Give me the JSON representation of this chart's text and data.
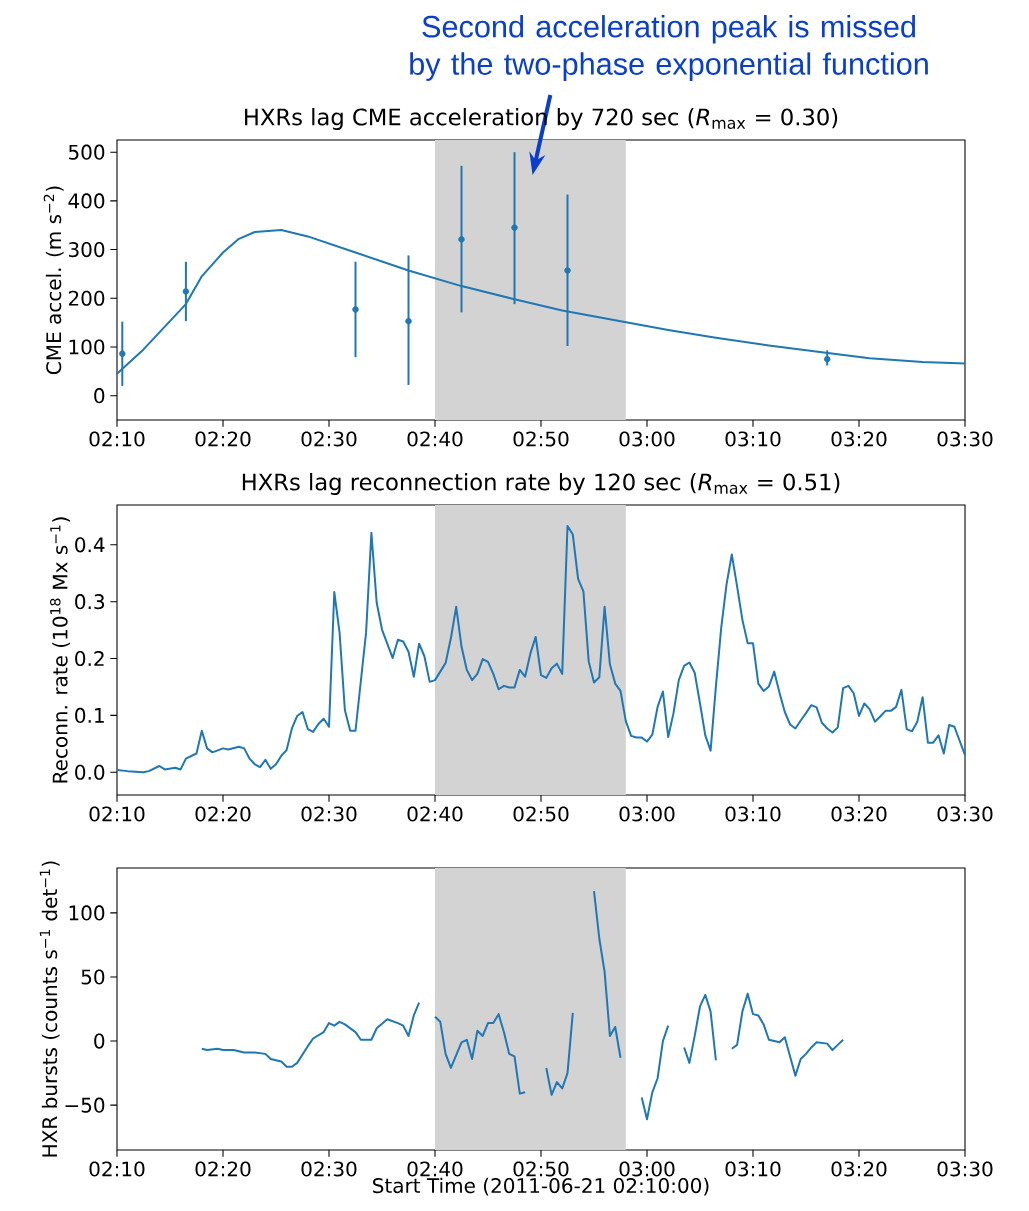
{
  "chart_data": [
    {
      "type": "scatter",
      "title": "HXRs lag CME acceleration by 720 sec (*R*$_{max}$ = 0.30)",
      "ylabel": "CME accel. (m s$^{−2}$)",
      "xlim": [
        "2011-06-21T02:10",
        "2011-06-21T03:30"
      ],
      "ylim": [
        -50,
        525
      ],
      "xticks": [
        {
          "value": "2011-06-21T02:10",
          "label": "02:10"
        },
        {
          "value": "2011-06-21T02:20",
          "label": "02:20"
        },
        {
          "value": "2011-06-21T02:30",
          "label": "02:30"
        },
        {
          "value": "2011-06-21T02:40",
          "label": "02:40"
        },
        {
          "value": "2011-06-21T02:50",
          "label": "02:50"
        },
        {
          "value": "2011-06-21T03:00",
          "label": "03:00"
        },
        {
          "value": "2011-06-21T03:10",
          "label": "03:10"
        },
        {
          "value": "2011-06-21T03:20",
          "label": "03:20"
        },
        {
          "value": "2011-06-21T03:30",
          "label": "03:30"
        }
      ],
      "yticks": [
        0,
        100,
        200,
        300,
        400,
        500
      ],
      "bands": [
        {
          "axis": "x",
          "from": "2011-06-21T02:40",
          "to": "2011-06-21T02:58",
          "color": "#d3d3d3"
        }
      ],
      "annotations": [
        "Second acceleration peak is missed by the two-phase exponential function"
      ],
      "series": [
        {
          "color": "#1f77b4",
          "marker": "circle",
          "x": [
            "2011-06-21T02:10:30",
            "2011-06-21T02:16:30",
            "2011-06-21T02:32:30",
            "2011-06-21T02:37:30",
            "2011-06-21T02:42:30",
            "2011-06-21T02:47:30",
            "2011-06-21T02:52:30",
            "2011-06-21T03:17"
          ],
          "values": [
            86,
            214,
            177,
            153,
            321,
            345,
            257,
            75
          ],
          "errors": [
            [
              20,
              152
            ],
            [
              153,
              275
            ],
            [
              79,
              275
            ],
            [
              22,
              288
            ],
            [
              171,
              472
            ],
            [
              188,
              500
            ],
            [
              102,
              413
            ],
            [
              62,
              93
            ]
          ]
        },
        {
          "type": "line",
          "color": "#1f77b4",
          "x": [
            "2011-06-21T02:10",
            "2011-06-21T02:12:30",
            "2011-06-21T02:16:30",
            "2011-06-21T02:18",
            "2011-06-21T02:20",
            "2011-06-21T02:21:30",
            "2011-06-21T02:23",
            "2011-06-21T02:25:30",
            "2011-06-21T02:28",
            "2011-06-21T02:32:30",
            "2011-06-21T02:37:30",
            "2011-06-21T02:42:30",
            "2011-06-21T02:47:30",
            "2011-06-21T02:52",
            "2011-06-21T02:57",
            "2011-06-21T03:02",
            "2011-06-21T03:06:30",
            "2011-06-21T03:11:30",
            "2011-06-21T03:16:30",
            "2011-06-21T03:21",
            "2011-06-21T03:26",
            "2011-06-21T03:30"
          ],
          "values": [
            45,
            95,
            188,
            245,
            294,
            322,
            336,
            340,
            327,
            294,
            257,
            225,
            198,
            175,
            155,
            135,
            119,
            103,
            89,
            77,
            69,
            66
          ]
        }
      ]
    },
    {
      "type": "line",
      "title": "HXRs lag reconnection rate by 120 sec (*R*$_{max}$ = 0.51)",
      "ylabel": "Reconn. rate (10$^{18}$ Mx s$^{−1}$)",
      "xlim": [
        "2011-06-21T02:10",
        "2011-06-21T03:30"
      ],
      "ylim": [
        -0.04,
        0.47
      ],
      "xticks": [
        {
          "value": "2011-06-21T02:10",
          "label": "02:10"
        },
        {
          "value": "2011-06-21T02:20",
          "label": "02:20"
        },
        {
          "value": "2011-06-21T02:30",
          "label": "02:30"
        },
        {
          "value": "2011-06-21T02:40",
          "label": "02:40"
        },
        {
          "value": "2011-06-21T02:50",
          "label": "02:50"
        },
        {
          "value": "2011-06-21T03:00",
          "label": "03:00"
        },
        {
          "value": "2011-06-21T03:10",
          "label": "03:10"
        },
        {
          "value": "2011-06-21T03:20",
          "label": "03:20"
        },
        {
          "value": "2011-06-21T03:30",
          "label": "03:30"
        }
      ],
      "yticks": [
        {
          "value": 0,
          "label": "0.0"
        },
        {
          "value": 0.1,
          "label": "0.1"
        },
        {
          "value": 0.2,
          "label": "0.2"
        },
        {
          "value": 0.3,
          "label": "0.3"
        },
        {
          "value": 0.4,
          "label": "0.4"
        }
      ],
      "bands": [
        {
          "axis": "x",
          "from": "2011-06-21T02:40",
          "to": "2011-06-21T02:58",
          "color": "#d3d3d3"
        }
      ],
      "series": [
        {
          "color": "#1f77b4",
          "x": [
            "2011-06-21T02:10",
            "2011-06-21T02:11",
            "2011-06-21T02:12:30",
            "2011-06-21T02:13",
            "2011-06-21T02:14",
            "2011-06-21T02:14:30",
            "2011-06-21T02:15:30",
            "2011-06-21T02:16",
            "2011-06-21T02:16:30",
            "2011-06-21T02:17:30",
            "2011-06-21T02:18",
            "2011-06-21T02:18:30",
            "2011-06-21T02:19",
            "2011-06-21T02:20",
            "2011-06-21T02:20:30",
            "2011-06-21T02:21:30",
            "2011-06-21T02:22",
            "2011-06-21T02:22:30",
            "2011-06-21T02:23",
            "2011-06-21T02:23:30",
            "2011-06-21T02:24",
            "2011-06-21T02:24:30",
            "2011-06-21T02:25",
            "2011-06-21T02:25:30",
            "2011-06-21T02:26",
            "2011-06-21T02:26:30",
            "2011-06-21T02:27",
            "2011-06-21T02:27:30",
            "2011-06-21T02:28",
            "2011-06-21T02:28:30",
            "2011-06-21T02:29",
            "2011-06-21T02:29:30",
            "2011-06-21T02:30",
            "2011-06-21T02:30:30",
            "2011-06-21T02:31",
            "2011-06-21T02:31:30",
            "2011-06-21T02:32",
            "2011-06-21T02:32:30",
            "2011-06-21T02:33:30",
            "2011-06-21T02:34",
            "2011-06-21T02:34:30",
            "2011-06-21T02:35",
            "2011-06-21T02:36",
            "2011-06-21T02:36:30",
            "2011-06-21T02:37",
            "2011-06-21T02:37:30",
            "2011-06-21T02:38",
            "2011-06-21T02:38:30",
            "2011-06-21T02:39",
            "2011-06-21T02:39:30",
            "2011-06-21T02:40",
            "2011-06-21T02:40:30",
            "2011-06-21T02:41",
            "2011-06-21T02:41:30",
            "2011-06-21T02:42",
            "2011-06-21T02:42:30",
            "2011-06-21T02:43",
            "2011-06-21T02:43:30",
            "2011-06-21T02:44",
            "2011-06-21T02:44:30",
            "2011-06-21T02:45",
            "2011-06-21T02:45:30",
            "2011-06-21T02:46",
            "2011-06-21T02:46:30",
            "2011-06-21T02:47",
            "2011-06-21T02:47:30",
            "2011-06-21T02:48",
            "2011-06-21T02:48:30",
            "2011-06-21T02:49",
            "2011-06-21T02:49:30",
            "2011-06-21T02:50",
            "2011-06-21T02:50:30",
            "2011-06-21T02:51",
            "2011-06-21T02:51:30",
            "2011-06-21T02:52",
            "2011-06-21T02:52:30",
            "2011-06-21T02:53",
            "2011-06-21T02:53:30",
            "2011-06-21T02:54",
            "2011-06-21T02:54:30",
            "2011-06-21T02:55",
            "2011-06-21T02:55:30",
            "2011-06-21T02:56",
            "2011-06-21T02:56:30",
            "2011-06-21T02:57",
            "2011-06-21T02:57:30",
            "2011-06-21T02:58",
            "2011-06-21T02:58:30",
            "2011-06-21T02:59",
            "2011-06-21T02:59:30",
            "2011-06-21T03:00",
            "2011-06-21T03:00:30",
            "2011-06-21T03:01",
            "2011-06-21T03:01:30",
            "2011-06-21T03:02",
            "2011-06-21T03:02:30",
            "2011-06-21T03:03",
            "2011-06-21T03:03:30",
            "2011-06-21T03:04",
            "2011-06-21T03:04:30",
            "2011-06-21T03:05",
            "2011-06-21T03:05:30",
            "2011-06-21T03:06",
            "2011-06-21T03:06:30",
            "2011-06-21T03:07",
            "2011-06-21T03:07:30",
            "2011-06-21T03:08",
            "2011-06-21T03:08:30",
            "2011-06-21T03:09",
            "2011-06-21T03:09:30",
            "2011-06-21T03:10",
            "2011-06-21T03:10:30",
            "2011-06-21T03:11",
            "2011-06-21T03:11:30",
            "2011-06-21T03:12",
            "2011-06-21T03:12:30",
            "2011-06-21T03:13",
            "2011-06-21T03:13:30",
            "2011-06-21T03:14",
            "2011-06-21T03:14:30",
            "2011-06-21T03:15",
            "2011-06-21T03:15:30",
            "2011-06-21T03:16",
            "2011-06-21T03:16:30",
            "2011-06-21T03:17",
            "2011-06-21T03:17:30",
            "2011-06-21T03:18",
            "2011-06-21T03:18:30",
            "2011-06-21T03:19",
            "2011-06-21T03:19:30",
            "2011-06-21T03:20",
            "2011-06-21T03:20:30",
            "2011-06-21T03:21",
            "2011-06-21T03:21:30",
            "2011-06-21T03:22",
            "2011-06-21T03:22:30",
            "2011-06-21T03:23",
            "2011-06-21T03:23:30",
            "2011-06-21T03:24",
            "2011-06-21T03:24:30",
            "2011-06-21T03:25",
            "2011-06-21T03:25:30",
            "2011-06-21T03:26",
            "2011-06-21T03:26:30",
            "2011-06-21T03:27",
            "2011-06-21T03:27:30",
            "2011-06-21T03:28",
            "2011-06-21T03:28:30",
            "2011-06-21T03:29",
            "2011-06-21T03:30"
          ],
          "values": [
            0.004,
            0.002,
            0.0,
            0.002,
            0.011,
            0.005,
            0.008,
            0.005,
            0.024,
            0.033,
            0.073,
            0.042,
            0.035,
            0.042,
            0.04,
            0.045,
            0.042,
            0.024,
            0.014,
            0.009,
            0.022,
            0.006,
            0.014,
            0.029,
            0.039,
            0.077,
            0.099,
            0.106,
            0.076,
            0.071,
            0.085,
            0.094,
            0.08,
            0.317,
            0.245,
            0.109,
            0.073,
            0.073,
            0.246,
            0.421,
            0.298,
            0.251,
            0.201,
            0.233,
            0.23,
            0.212,
            0.168,
            0.226,
            0.204,
            0.159,
            0.162,
            0.177,
            0.192,
            0.236,
            0.291,
            0.221,
            0.18,
            0.162,
            0.173,
            0.199,
            0.194,
            0.173,
            0.146,
            0.152,
            0.149,
            0.149,
            0.18,
            0.168,
            0.209,
            0.238,
            0.171,
            0.166,
            0.183,
            0.191,
            0.173,
            0.433,
            0.418,
            0.34,
            0.318,
            0.195,
            0.158,
            0.167,
            0.291,
            0.19,
            0.156,
            0.143,
            0.09,
            0.064,
            0.061,
            0.061,
            0.054,
            0.066,
            0.115,
            0.142,
            0.062,
            0.104,
            0.162,
            0.187,
            0.193,
            0.175,
            0.121,
            0.065,
            0.038,
            0.151,
            0.254,
            0.33,
            0.383,
            0.327,
            0.268,
            0.227,
            0.227,
            0.156,
            0.143,
            0.151,
            0.177,
            0.14,
            0.106,
            0.084,
            0.077,
            0.091,
            0.104,
            0.118,
            0.114,
            0.087,
            0.077,
            0.07,
            0.079,
            0.148,
            0.152,
            0.139,
            0.099,
            0.121,
            0.111,
            0.089,
            0.098,
            0.108,
            0.108,
            0.115,
            0.145,
            0.076,
            0.072,
            0.089,
            0.132,
            0.052,
            0.052,
            0.065,
            0.033,
            0.083,
            0.08,
            0.03
          ]
        }
      ]
    },
    {
      "type": "line",
      "xlabel": "Start Time (2011-06-21 02:10:00)",
      "ylabel": "HXR bursts (counts s$^{−1}$ det$^{−1}$)",
      "xlim": [
        "2011-06-21T02:10",
        "2011-06-21T03:30"
      ],
      "ylim": [
        -85,
        135
      ],
      "xticks": [
        {
          "value": "2011-06-21T02:10",
          "label": "02:10"
        },
        {
          "value": "2011-06-21T02:20",
          "label": "02:20"
        },
        {
          "value": "2011-06-21T02:30",
          "label": "02:30"
        },
        {
          "value": "2011-06-21T02:40",
          "label": "02:40"
        },
        {
          "value": "2011-06-21T02:50",
          "label": "02:50"
        },
        {
          "value": "2011-06-21T03:00",
          "label": "03:00"
        },
        {
          "value": "2011-06-21T03:10",
          "label": "03:10"
        },
        {
          "value": "2011-06-21T03:20",
          "label": "03:20"
        },
        {
          "value": "2011-06-21T03:30",
          "label": "03:30"
        }
      ],
      "yticks": [
        {
          "value": -50,
          "label": "−50"
        },
        0,
        50,
        100
      ],
      "bands": [
        {
          "axis": "x",
          "from": "2011-06-21T02:40",
          "to": "2011-06-21T02:58",
          "color": "#d3d3d3"
        }
      ],
      "series": [
        {
          "color": "#1f77b4",
          "x": [
            "2011-06-21T02:18",
            "2011-06-21T02:18:30",
            "2011-06-21T02:19:30",
            "2011-06-21T02:20",
            "2011-06-21T02:21",
            "2011-06-21T02:21:30",
            "2011-06-21T02:22",
            "2011-06-21T02:22:30",
            "2011-06-21T02:23",
            "2011-06-21T02:24",
            "2011-06-21T02:24:30",
            "2011-06-21T02:25:30",
            "2011-06-21T02:26",
            "2011-06-21T02:26:30",
            "2011-06-21T02:27",
            "2011-06-21T02:28",
            "2011-06-21T02:28:30",
            "2011-06-21T02:29:30",
            "2011-06-21T02:30",
            "2011-06-21T02:30:30",
            "2011-06-21T02:31",
            "2011-06-21T02:31:30",
            "2011-06-21T02:32:30",
            "2011-06-21T02:33",
            "2011-06-21T02:34",
            "2011-06-21T02:34:30",
            "2011-06-21T02:35:30",
            "2011-06-21T02:36:30",
            "2011-06-21T02:37",
            "2011-06-21T02:37:30",
            "2011-06-21T02:38",
            "2011-06-21T02:38:30",
            "2011-06-21T02:39",
            "2011-06-21T02:40",
            "2011-06-21T02:40:30",
            "2011-06-21T02:41",
            "2011-06-21T02:41:30",
            "2011-06-21T02:42",
            "2011-06-21T02:42:30",
            "2011-06-21T02:43",
            "2011-06-21T02:43:30",
            "2011-06-21T02:44",
            "2011-06-21T02:44:30",
            "2011-06-21T02:45",
            "2011-06-21T02:45:30",
            "2011-06-21T02:46",
            "2011-06-21T02:46:30",
            "2011-06-21T02:47",
            "2011-06-21T02:47:30",
            "2011-06-21T02:48",
            "2011-06-21T02:48:30",
            "2011-06-21T02:49:30",
            "2011-06-21T02:50:30",
            "2011-06-21T02:51",
            "2011-06-21T02:51:30",
            "2011-06-21T02:52",
            "2011-06-21T02:52:30",
            "2011-06-21T02:53",
            "2011-06-21T02:54",
            "2011-06-21T02:55",
            "2011-06-21T02:55:30",
            "2011-06-21T02:56",
            "2011-06-21T02:56:30",
            "2011-06-21T02:57",
            "2011-06-21T02:57:30",
            "2011-06-21T02:58:30",
            "2011-06-21T02:59:30",
            "2011-06-21T03:00",
            "2011-06-21T03:00:30",
            "2011-06-21T03:01",
            "2011-06-21T03:01:30",
            "2011-06-21T03:02",
            "2011-06-21T03:03",
            "2011-06-21T03:03:30",
            "2011-06-21T03:04",
            "2011-06-21T03:04:30",
            "2011-06-21T03:05",
            "2011-06-21T03:05:30",
            "2011-06-21T03:06",
            "2011-06-21T03:06:30",
            "2011-06-21T03:07:30",
            "2011-06-21T03:08",
            "2011-06-21T03:08:30",
            "2011-06-21T03:09",
            "2011-06-21T03:09:30",
            "2011-06-21T03:10",
            "2011-06-21T03:10:30",
            "2011-06-21T03:11",
            "2011-06-21T03:11:30",
            "2011-06-21T03:12:30",
            "2011-06-21T03:13",
            "2011-06-21T03:13:30",
            "2011-06-21T03:14",
            "2011-06-21T03:14:30",
            "2011-06-21T03:15",
            "2011-06-21T03:15:30",
            "2011-06-21T03:16",
            "2011-06-21T03:17",
            "2011-06-21T03:17:30",
            "2011-06-21T03:18",
            "2011-06-21T03:18:30"
          ],
          "values": [
            -6,
            -7,
            -6,
            -7,
            -7,
            -8,
            -9,
            -9,
            -9,
            -10,
            -14,
            -16,
            -20,
            -20,
            -17,
            -4,
            2,
            7,
            14,
            12,
            15,
            13,
            7,
            1,
            1,
            10,
            17,
            14,
            12,
            4,
            20,
            30,
            null,
            19,
            15,
            -10,
            -21,
            -11,
            -1,
            1,
            -14,
            8,
            4,
            14,
            14,
            21,
            7,
            -10,
            -12,
            -41,
            -40,
            null,
            -21,
            -42,
            -32,
            -37,
            -25,
            22,
            null,
            117,
            80,
            54,
            4,
            11,
            -13,
            null,
            -44,
            -61,
            -40,
            -29,
            0,
            12,
            null,
            -5,
            -17,
            4,
            27,
            36,
            23,
            -15,
            null,
            -6,
            -3,
            23,
            37,
            21,
            20,
            13,
            1,
            -1,
            3,
            -12,
            -27,
            -14,
            -10,
            -5,
            -1,
            -2,
            -7,
            -3,
            1
          ]
        }
      ]
    }
  ]
}
